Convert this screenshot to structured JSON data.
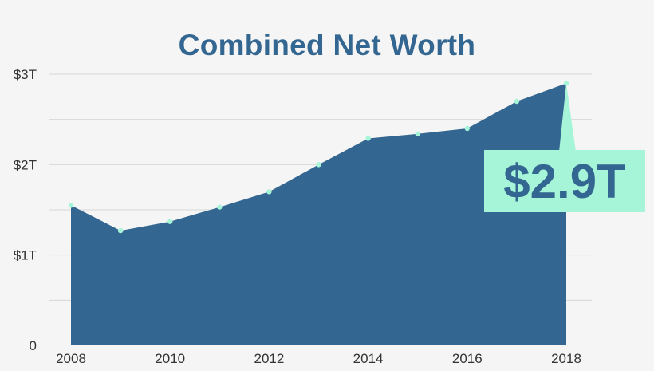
{
  "chart_data": {
    "type": "area",
    "title": "Combined Net Worth",
    "xlabel": "",
    "ylabel": "",
    "x": [
      2008,
      2009,
      2010,
      2011,
      2012,
      2013,
      2014,
      2015,
      2016,
      2017,
      2018
    ],
    "values": [
      1.55,
      1.27,
      1.37,
      1.53,
      1.7,
      2.0,
      2.29,
      2.34,
      2.4,
      2.7,
      2.9
    ],
    "xlim": [
      2008,
      2018
    ],
    "ylim": [
      0,
      3
    ],
    "x_tick_labels": [
      {
        "value": 2008,
        "label": "2008"
      },
      {
        "value": 2010,
        "label": "2010"
      },
      {
        "value": 2012,
        "label": "2012"
      },
      {
        "value": 2014,
        "label": "2014"
      },
      {
        "value": 2016,
        "label": "2016"
      },
      {
        "value": 2018,
        "label": "2018"
      }
    ],
    "y_tick_labels": [
      {
        "value": 0,
        "label": "0"
      },
      {
        "value": 1,
        "label": "$1T"
      },
      {
        "value": 2,
        "label": "$2T"
      },
      {
        "value": 3,
        "label": "$3T"
      }
    ],
    "minor_gridlines": [
      0.5,
      1.5,
      2.5
    ],
    "grid": true,
    "annotation": {
      "text": "$2.9T",
      "target_x": 2018
    },
    "colors": {
      "area": "#336690",
      "title": "#336690",
      "marker": "#a6f5d8",
      "callout_bg": "#a6f5d8",
      "callout_text": "#336690",
      "grid": "#d7d7d7",
      "tick_text": "#333333",
      "background": "#f5f5f5"
    }
  }
}
